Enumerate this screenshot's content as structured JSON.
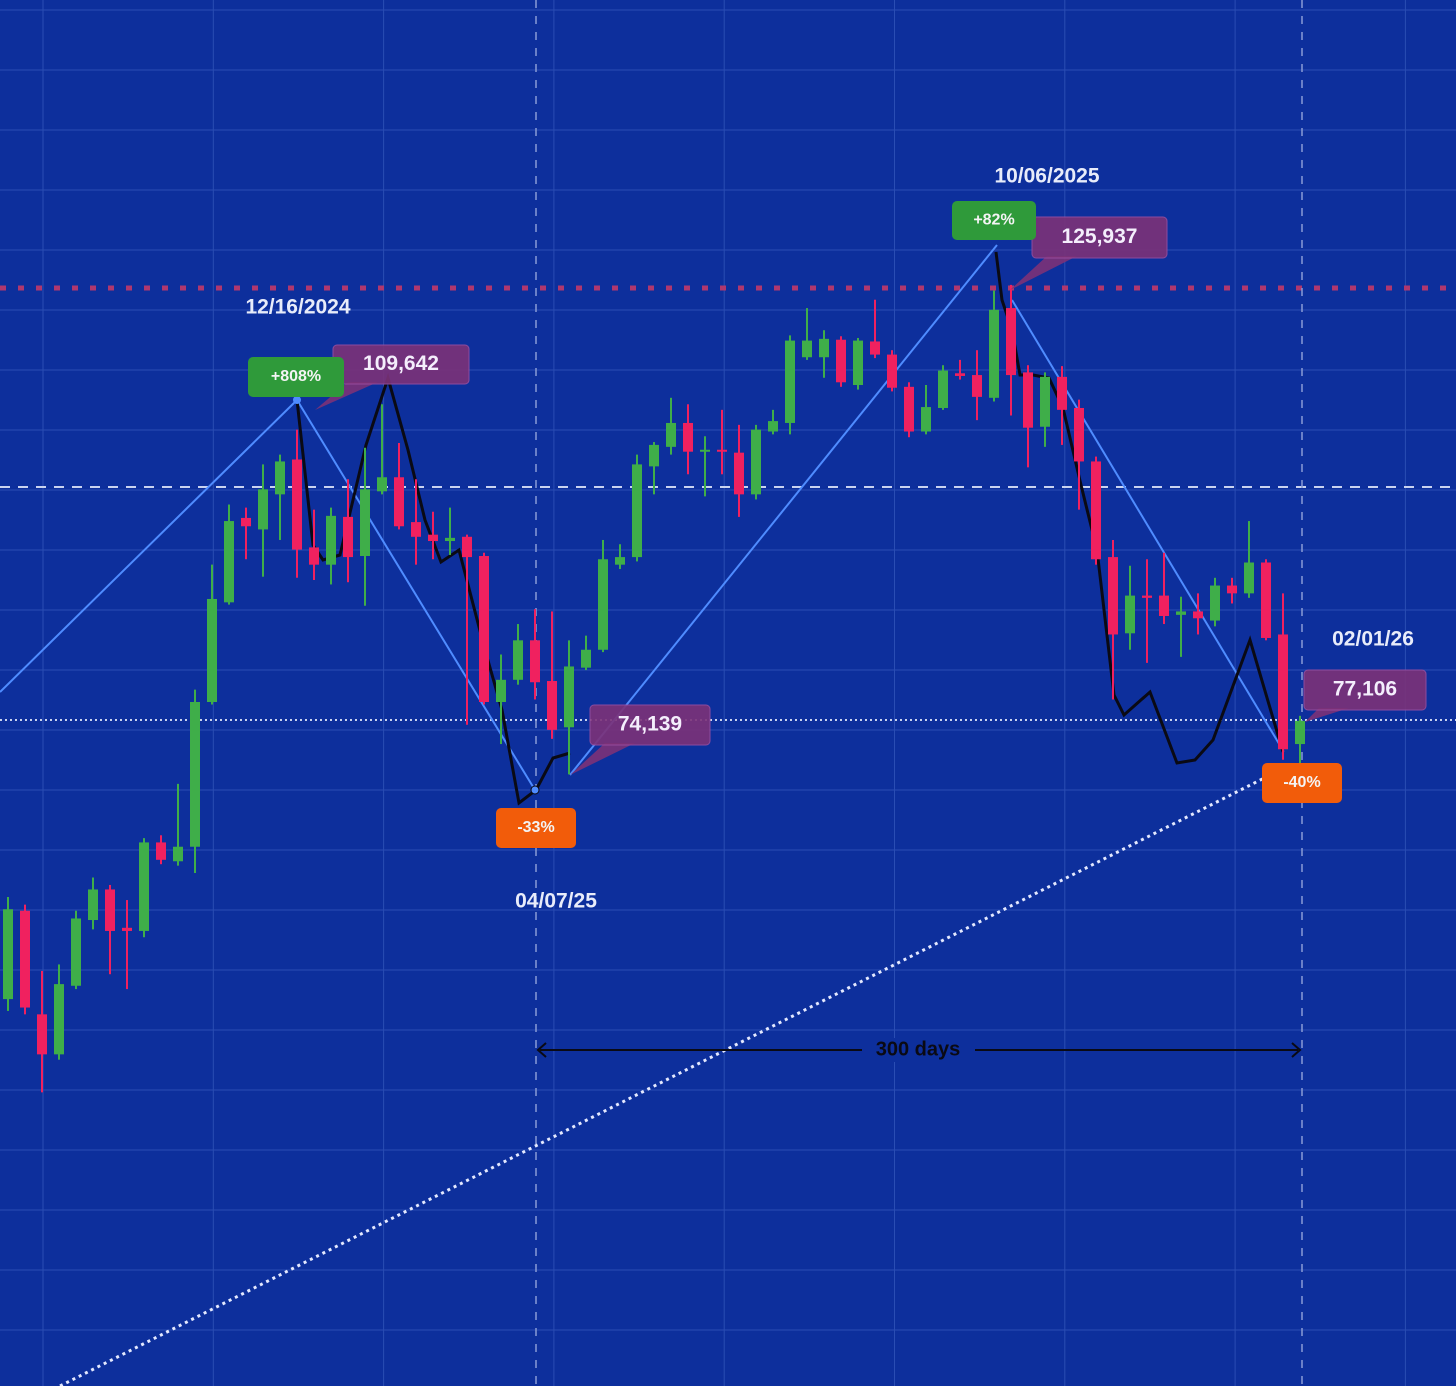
{
  "chart_data": {
    "type": "candlestick",
    "log_scale": true,
    "ylim": [
      40400,
      161700
    ],
    "grid": true,
    "up_color": "#3fae49",
    "down_color": "#f0215f",
    "open": [
      59500,
      65000,
      58600,
      56300,
      60300,
      64400,
      66400,
      63900,
      63700,
      69600,
      68300,
      69300,
      80100,
      88500,
      96300,
      95200,
      98600,
      102100,
      93500,
      91900,
      96400,
      92700,
      98900,
      100300,
      95900,
      94700,
      94100,
      94500,
      92700,
      80100,
      81900,
      85200,
      81800,
      78100,
      82900,
      84400,
      91900,
      92600,
      101400,
      103400,
      105900,
      102900,
      103100,
      102800,
      98600,
      105000,
      105900,
      113100,
      113100,
      115100,
      110000,
      114900,
      113400,
      109800,
      105000,
      107500,
      111300,
      111100,
      108600,
      118800,
      111400,
      105500,
      110900,
      107500,
      101900,
      92600,
      85800,
      89100,
      89100,
      87400,
      87700,
      86900,
      90000,
      89300,
      92100,
      85700,
      76800
    ],
    "high": [
      65900,
      65400,
      61200,
      61600,
      65000,
      67200,
      66700,
      65700,
      69900,
      70100,
      73800,
      81100,
      91900,
      97600,
      97300,
      101600,
      102600,
      105200,
      97100,
      97300,
      100100,
      103300,
      107900,
      103800,
      100100,
      96900,
      97300,
      94700,
      93000,
      84000,
      86600,
      87900,
      87700,
      85200,
      85600,
      94200,
      93800,
      102600,
      103900,
      108600,
      107900,
      104500,
      107300,
      105700,
      105700,
      107300,
      115600,
      118800,
      116200,
      115500,
      115300,
      119800,
      113900,
      110300,
      110000,
      112200,
      112800,
      113900,
      120900,
      121600,
      112200,
      111400,
      112100,
      108400,
      102400,
      94200,
      91800,
      92400,
      93000,
      89000,
      89300,
      90700,
      90700,
      96000,
      92400,
      89300,
      79000
    ],
    "low": [
      58800,
      58600,
      54200,
      56000,
      60100,
      63800,
      61000,
      60100,
      63300,
      68100,
      68000,
      67500,
      79900,
      88300,
      92400,
      90800,
      94200,
      90700,
      90500,
      90100,
      90300,
      88200,
      98600,
      95200,
      91900,
      92400,
      92800,
      78300,
      79900,
      76800,
      81500,
      80300,
      77200,
      74500,
      82700,
      84200,
      91500,
      92200,
      98600,
      102600,
      100600,
      98400,
      100600,
      96400,
      98100,
      104700,
      104700,
      112800,
      110800,
      109800,
      109500,
      113000,
      109300,
      104400,
      104700,
      107300,
      110600,
      106200,
      108200,
      106700,
      101300,
      103400,
      103600,
      97100,
      91900,
      80300,
      84400,
      83300,
      86600,
      83800,
      85700,
      86400,
      88400,
      88900,
      85200,
      75600,
      74700
    ],
    "close": [
      65100,
      59000,
      56300,
      60400,
      64500,
      66400,
      63700,
      63700,
      69600,
      68400,
      69300,
      80100,
      88800,
      96000,
      95500,
      99100,
      101900,
      93300,
      91900,
      96500,
      92600,
      99100,
      100300,
      95500,
      94500,
      94100,
      94400,
      92600,
      80100,
      81900,
      85200,
      81700,
      77900,
      83000,
      84400,
      92400,
      92600,
      101600,
      103600,
      105900,
      102900,
      103100,
      102900,
      98600,
      105200,
      106100,
      115000,
      115000,
      115200,
      110300,
      115000,
      113400,
      109700,
      105000,
      107600,
      111600,
      111000,
      108700,
      118600,
      111100,
      105400,
      110900,
      107300,
      101900,
      92400,
      85700,
      89100,
      88900,
      87300,
      87700,
      87100,
      90000,
      89300,
      92100,
      85400,
      76400,
      78600
    ],
    "dates": [
      "12/16/2024",
      "10/06/2025",
      "04/07/25",
      "02/01/26"
    ],
    "prices": [
      "109,642",
      "125,937",
      "74,139",
      "77,106"
    ],
    "changes": [
      "+808%",
      "+82%",
      "-33%",
      "-40%"
    ],
    "span": "300 days"
  }
}
